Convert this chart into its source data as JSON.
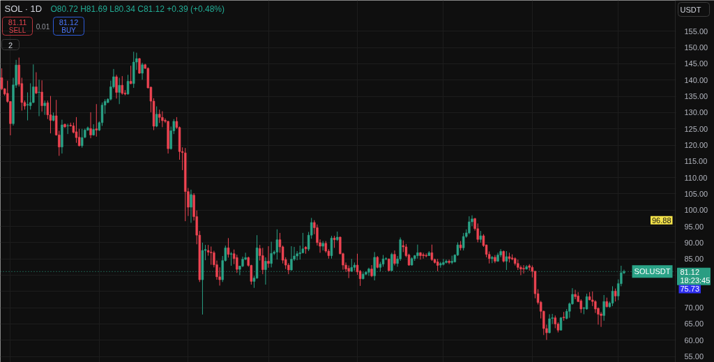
{
  "chart_data": {
    "type": "candlestick",
    "title": "SOL · 1D",
    "categories": [
      null,
      null,
      null,
      null,
      null,
      null,
      null,
      null,
      null,
      null,
      null,
      null,
      null,
      null,
      null,
      null,
      null,
      null,
      null,
      null,
      null,
      null,
      null,
      null,
      null,
      null,
      null,
      null,
      null,
      null,
      null,
      null,
      null,
      null,
      null,
      null,
      null,
      null,
      null,
      null,
      null,
      null,
      null,
      null,
      null,
      null,
      null,
      null,
      null,
      null,
      null,
      null,
      null,
      null,
      null,
      null,
      null,
      null,
      null,
      null,
      null,
      null,
      null,
      null,
      null,
      null,
      null,
      null,
      null,
      null,
      null,
      null,
      null,
      null,
      null,
      null,
      null,
      null,
      null,
      null,
      null,
      null,
      null,
      null,
      null,
      null,
      null,
      null,
      null,
      null,
      null,
      null,
      null,
      null,
      null,
      null,
      null,
      null,
      null,
      null,
      null,
      null,
      null,
      null,
      null,
      null,
      null,
      null,
      null,
      null,
      null,
      null,
      null,
      null,
      null,
      null,
      null,
      null,
      null,
      null,
      null,
      null,
      null,
      null,
      null,
      null,
      null,
      null,
      null,
      null,
      null,
      null,
      null,
      null,
      null,
      null,
      null,
      null,
      null,
      null,
      null,
      null,
      null,
      null,
      null,
      null,
      null,
      null,
      null,
      null,
      null,
      null,
      null,
      null,
      null,
      null,
      null,
      null,
      null,
      null,
      null,
      null,
      null,
      null,
      null,
      null,
      null,
      null,
      null,
      null,
      null,
      null,
      null,
      null,
      null,
      null,
      null,
      null,
      null,
      null,
      null,
      null,
      null,
      null,
      null,
      null,
      null,
      null,
      null,
      null,
      null,
      null,
      null,
      null,
      null,
      null,
      null,
      null,
      null,
      null,
      null,
      null,
      null,
      null,
      null,
      null,
      null,
      null,
      null,
      null,
      null,
      null,
      null,
      null,
      null,
      null,
      null,
      null,
      null,
      null,
      null,
      null,
      null,
      null,
      null,
      null,
      null,
      null,
      null,
      null,
      null,
      null,
      null,
      null,
      null,
      null,
      null,
      null,
      null,
      null,
      null,
      null,
      null,
      null,
      null,
      null,
      null,
      null,
      null
    ],
    "ohlc": [
      [
        140.7,
        143.6,
        136.9,
        137.3
      ],
      [
        137.3,
        137.5,
        135.2,
        135.7
      ],
      [
        135.9,
        139.8,
        133.0,
        133.4
      ],
      [
        133.4,
        133.5,
        123.0,
        126.6
      ],
      [
        126.6,
        140.7,
        126.0,
        138.5
      ],
      [
        138.4,
        146.2,
        137.6,
        144.6
      ],
      [
        144.6,
        146.9,
        138.0,
        138.7
      ],
      [
        138.9,
        140.7,
        130.6,
        133.1
      ],
      [
        133.1,
        133.7,
        130.9,
        132.0
      ],
      [
        132.3,
        136.2,
        127.6,
        132.5
      ],
      [
        132.1,
        139.0,
        130.9,
        133.1
      ],
      [
        133.1,
        144.8,
        132.9,
        137.9
      ],
      [
        137.9,
        142.4,
        135.7,
        136.0
      ],
      [
        136.2,
        140.1,
        128.9,
        136.3
      ],
      [
        136.3,
        139.9,
        130.3,
        132.1
      ],
      [
        132.1,
        133.7,
        129.3,
        132.9
      ],
      [
        133.0,
        133.7,
        128.0,
        129.3
      ],
      [
        129.3,
        135.1,
        123.6,
        127.6
      ],
      [
        127.6,
        130.0,
        127.3,
        129.0
      ],
      [
        129.0,
        133.9,
        122.9,
        123.1
      ],
      [
        123.1,
        124.4,
        116.7,
        119.4
      ],
      [
        119.4,
        127.8,
        117.4,
        126.2
      ],
      [
        126.4,
        126.6,
        125.3,
        125.6
      ],
      [
        125.9,
        126.6,
        123.4,
        126.0
      ],
      [
        126.1,
        126.9,
        125.7,
        125.9
      ],
      [
        125.9,
        126.9,
        123.6,
        123.9
      ],
      [
        124.1,
        128.6,
        120.7,
        122.3
      ],
      [
        122.4,
        125.0,
        119.6,
        119.8
      ],
      [
        119.8,
        125.0,
        119.2,
        122.3
      ],
      [
        122.4,
        125.1,
        122.1,
        124.6
      ],
      [
        124.6,
        125.7,
        124.4,
        125.3
      ],
      [
        125.1,
        130.1,
        122.1,
        123.1
      ],
      [
        123.1,
        126.4,
        122.9,
        124.8
      ],
      [
        125.0,
        132.6,
        122.6,
        124.6
      ],
      [
        124.6,
        127.3,
        124.3,
        126.9
      ],
      [
        126.9,
        133.1,
        125.9,
        132.3
      ],
      [
        132.3,
        134.1,
        129.6,
        133.4
      ],
      [
        133.1,
        134.4,
        132.9,
        134.1
      ],
      [
        134.1,
        139.8,
        133.7,
        137.9
      ],
      [
        137.9,
        143.4,
        137.4,
        141.0
      ],
      [
        141.0,
        141.6,
        134.3,
        136.2
      ],
      [
        136.2,
        140.7,
        132.6,
        138.4
      ],
      [
        138.4,
        141.2,
        135.5,
        135.9
      ],
      [
        136.0,
        136.9,
        135.3,
        135.7
      ],
      [
        135.7,
        141.6,
        135.5,
        139.6
      ],
      [
        139.6,
        144.4,
        138.7,
        138.9
      ],
      [
        138.9,
        148.7,
        137.6,
        145.5
      ],
      [
        145.5,
        148.4,
        143.1,
        146.6
      ],
      [
        146.6,
        146.8,
        141.9,
        142.1
      ],
      [
        142.1,
        145.3,
        140.1,
        144.7
      ],
      [
        144.7,
        145.0,
        143.4,
        143.6
      ],
      [
        143.6,
        143.9,
        137.4,
        137.6
      ],
      [
        137.8,
        138.0,
        130.1,
        133.5
      ],
      [
        133.5,
        134.4,
        124.6,
        125.8
      ],
      [
        125.8,
        131.9,
        125.5,
        129.5
      ],
      [
        129.5,
        130.9,
        126.8,
        128.5
      ],
      [
        128.5,
        130.4,
        125.5,
        127.5
      ],
      [
        127.6,
        128.2,
        126.8,
        127.3
      ],
      [
        127.3,
        127.5,
        117.4,
        118.9
      ],
      [
        118.9,
        125.7,
        118.6,
        124.4
      ],
      [
        124.4,
        128.0,
        123.4,
        127.3
      ],
      [
        127.3,
        128.6,
        125.0,
        125.4
      ],
      [
        125.4,
        125.7,
        115.5,
        118.0
      ],
      [
        118.0,
        119.3,
        112.3,
        117.7
      ],
      [
        117.6,
        119.1,
        96.6,
        105.7
      ],
      [
        105.7,
        106.8,
        98.2,
        100.9
      ],
      [
        100.9,
        106.3,
        96.1,
        104.8
      ],
      [
        104.6,
        105.2,
        96.8,
        98.0
      ],
      [
        98.0,
        99.9,
        89.5,
        92.3
      ],
      [
        92.3,
        93.6,
        77.9,
        78.6
      ],
      [
        78.6,
        90.0,
        67.9,
        87.6
      ],
      [
        87.6,
        89.3,
        84.6,
        87.9
      ],
      [
        87.6,
        89.3,
        86.0,
        87.1
      ],
      [
        87.1,
        88.8,
        83.2,
        86.9
      ],
      [
        86.9,
        87.5,
        82.4,
        83.2
      ],
      [
        83.2,
        84.5,
        78.6,
        79.5
      ],
      [
        79.5,
        82.4,
        76.8,
        78.6
      ],
      [
        78.6,
        85.9,
        77.9,
        84.5
      ],
      [
        84.5,
        89.1,
        84.2,
        88.4
      ],
      [
        88.4,
        91.4,
        85.4,
        86.4
      ],
      [
        86.4,
        87.1,
        82.9,
        86.6
      ],
      [
        86.6,
        87.9,
        83.4,
        85.1
      ],
      [
        85.4,
        86.3,
        80.7,
        81.8
      ],
      [
        81.8,
        82.9,
        80.0,
        82.8
      ],
      [
        82.8,
        85.7,
        82.5,
        84.9
      ],
      [
        84.9,
        86.9,
        84.6,
        85.4
      ],
      [
        85.4,
        85.7,
        82.6,
        83.0
      ],
      [
        83.0,
        83.2,
        77.1,
        78.1
      ],
      [
        78.1,
        79.8,
        76.1,
        79.1
      ],
      [
        79.1,
        92.3,
        78.9,
        88.4
      ],
      [
        88.2,
        89.3,
        84.5,
        86.0
      ],
      [
        86.0,
        88.4,
        80.3,
        81.7
      ],
      [
        81.7,
        85.5,
        77.1,
        84.3
      ],
      [
        84.3,
        88.9,
        82.3,
        83.6
      ],
      [
        83.6,
        90.3,
        82.4,
        86.7
      ],
      [
        86.7,
        87.6,
        86.2,
        87.1
      ],
      [
        87.1,
        94.1,
        84.8,
        90.9
      ],
      [
        90.9,
        93.0,
        86.9,
        88.7
      ],
      [
        88.7,
        89.1,
        83.6,
        84.6
      ],
      [
        84.8,
        85.5,
        81.9,
        83.1
      ],
      [
        83.1,
        83.7,
        80.3,
        81.6
      ],
      [
        81.6,
        88.9,
        81.4,
        84.9
      ],
      [
        84.9,
        88.7,
        84.4,
        85.9
      ],
      [
        85.9,
        87.4,
        84.6,
        86.6
      ],
      [
        86.6,
        89.1,
        84.8,
        86.9
      ],
      [
        86.9,
        93.0,
        86.7,
        88.1
      ],
      [
        88.6,
        88.9,
        86.6,
        88.1
      ],
      [
        88.0,
        93.3,
        87.4,
        92.3
      ],
      [
        92.3,
        97.6,
        91.2,
        96.2
      ],
      [
        96.2,
        96.9,
        92.6,
        94.6
      ],
      [
        94.6,
        95.6,
        89.1,
        90.0
      ],
      [
        90.0,
        91.0,
        86.9,
        88.9
      ],
      [
        88.9,
        90.5,
        87.6,
        89.8
      ],
      [
        89.8,
        90.5,
        86.9,
        87.4
      ],
      [
        87.4,
        88.0,
        85.1,
        86.0
      ],
      [
        86.0,
        92.1,
        85.1,
        91.4
      ],
      [
        91.4,
        92.1,
        88.4,
        90.9
      ],
      [
        90.9,
        93.4,
        90.5,
        91.7
      ],
      [
        91.7,
        91.9,
        86.4,
        86.6
      ],
      [
        86.6,
        86.9,
        81.7,
        83.1
      ],
      [
        83.1,
        83.9,
        81.0,
        81.9
      ],
      [
        82.1,
        83.0,
        79.1,
        81.2
      ],
      [
        81.2,
        85.0,
        81.0,
        82.4
      ],
      [
        82.4,
        83.9,
        81.4,
        83.1
      ],
      [
        83.1,
        86.6,
        80.1,
        81.0
      ],
      [
        81.2,
        81.6,
        76.7,
        78.9
      ],
      [
        78.9,
        80.9,
        78.7,
        80.3
      ],
      [
        80.3,
        81.2,
        80.0,
        80.9
      ],
      [
        80.9,
        82.3,
        79.8,
        81.9
      ],
      [
        81.9,
        83.1,
        79.4,
        79.8
      ],
      [
        79.8,
        87.1,
        78.4,
        85.5
      ],
      [
        85.5,
        85.9,
        82.1,
        82.4
      ],
      [
        82.4,
        84.1,
        81.2,
        83.4
      ],
      [
        83.4,
        86.2,
        82.6,
        85.0
      ],
      [
        85.0,
        85.5,
        84.6,
        85.1
      ],
      [
        85.0,
        85.1,
        81.2,
        81.4
      ],
      [
        81.4,
        86.9,
        81.2,
        86.4
      ],
      [
        86.4,
        87.6,
        83.0,
        83.6
      ],
      [
        83.6,
        85.9,
        82.6,
        85.0
      ],
      [
        85.0,
        91.6,
        84.4,
        90.9
      ],
      [
        89.1,
        90.7,
        87.1,
        88.7
      ],
      [
        88.7,
        89.6,
        85.5,
        86.0
      ],
      [
        86.2,
        86.6,
        82.9,
        83.1
      ],
      [
        83.1,
        85.5,
        83.0,
        85.1
      ],
      [
        85.1,
        86.2,
        84.4,
        86.0
      ],
      [
        86.0,
        89.4,
        85.1,
        86.9
      ],
      [
        86.9,
        87.1,
        84.8,
        86.0
      ],
      [
        86.3,
        86.9,
        85.1,
        86.0
      ],
      [
        86.1,
        86.7,
        85.5,
        85.9
      ],
      [
        86.0,
        87.4,
        85.9,
        86.9
      ],
      [
        86.9,
        89.4,
        84.4,
        84.8
      ],
      [
        84.8,
        85.1,
        83.6,
        83.9
      ],
      [
        84.1,
        85.0,
        81.2,
        83.0
      ],
      [
        83.1,
        84.1,
        82.3,
        83.6
      ],
      [
        83.3,
        85.0,
        83.0,
        83.9
      ],
      [
        83.9,
        84.8,
        83.6,
        84.3
      ],
      [
        84.3,
        84.8,
        83.4,
        83.9
      ],
      [
        83.9,
        86.0,
        83.4,
        84.3
      ],
      [
        84.1,
        86.4,
        83.9,
        86.2
      ],
      [
        86.2,
        90.1,
        85.9,
        89.3
      ],
      [
        89.3,
        90.5,
        87.6,
        88.4
      ],
      [
        88.4,
        93.0,
        87.6,
        91.9
      ],
      [
        91.9,
        94.1,
        91.5,
        93.0
      ],
      [
        93.0,
        98.1,
        92.6,
        96.4
      ],
      [
        96.4,
        98.4,
        95.1,
        97.3
      ],
      [
        97.4,
        97.6,
        93.7,
        94.3
      ],
      [
        94.3,
        95.9,
        90.1,
        91.0
      ],
      [
        91.0,
        93.6,
        90.0,
        92.1
      ],
      [
        92.1,
        92.6,
        88.7,
        89.1
      ],
      [
        89.3,
        89.4,
        85.5,
        86.4
      ],
      [
        86.4,
        87.3,
        83.6,
        85.1
      ],
      [
        85.1,
        85.9,
        83.7,
        85.5
      ],
      [
        85.5,
        86.2,
        83.7,
        84.3
      ],
      [
        84.3,
        86.9,
        84.1,
        86.2
      ],
      [
        86.2,
        88.0,
        85.5,
        87.3
      ],
      [
        87.3,
        87.6,
        83.9,
        84.3
      ],
      [
        84.3,
        87.4,
        81.6,
        85.7
      ],
      [
        85.7,
        86.9,
        83.9,
        85.1
      ],
      [
        85.3,
        86.4,
        84.6,
        85.0
      ],
      [
        85.1,
        85.5,
        83.0,
        83.6
      ],
      [
        83.6,
        84.8,
        81.6,
        82.4
      ],
      [
        82.4,
        83.0,
        80.0,
        81.9
      ],
      [
        82.1,
        83.1,
        80.5,
        81.9
      ],
      [
        81.9,
        83.1,
        81.7,
        82.6
      ],
      [
        82.9,
        83.4,
        81.4,
        82.4
      ],
      [
        82.4,
        83.0,
        79.3,
        81.2
      ],
      [
        81.2,
        81.3,
        72.9,
        74.3
      ],
      [
        74.3,
        75.7,
        71.0,
        71.6
      ],
      [
        71.7,
        72.1,
        66.7,
        68.9
      ],
      [
        68.9,
        69.1,
        61.6,
        63.6
      ],
      [
        63.6,
        64.8,
        60.1,
        62.3
      ],
      [
        62.3,
        68.0,
        62.1,
        66.6
      ],
      [
        66.7,
        68.1,
        65.0,
        66.9
      ],
      [
        66.9,
        67.6,
        63.7,
        65.0
      ],
      [
        65.0,
        65.5,
        62.4,
        63.1
      ],
      [
        63.1,
        67.1,
        63.0,
        66.9
      ],
      [
        67.1,
        68.7,
        66.0,
        66.9
      ],
      [
        66.7,
        69.6,
        66.4,
        68.9
      ],
      [
        68.9,
        71.6,
        66.9,
        71.2
      ],
      [
        71.2,
        76.0,
        70.9,
        74.1
      ],
      [
        74.1,
        75.5,
        72.6,
        73.4
      ],
      [
        73.6,
        74.8,
        71.7,
        71.9
      ],
      [
        72.1,
        72.6,
        68.4,
        69.6
      ],
      [
        69.8,
        70.1,
        68.0,
        70.0
      ],
      [
        69.6,
        74.3,
        69.4,
        73.4
      ],
      [
        73.4,
        74.8,
        72.3,
        72.4
      ],
      [
        72.4,
        75.0,
        70.5,
        71.9
      ],
      [
        71.9,
        72.3,
        68.4,
        69.6
      ],
      [
        69.8,
        70.1,
        64.8,
        68.0
      ],
      [
        68.1,
        68.7,
        64.1,
        67.6
      ],
      [
        67.6,
        73.9,
        66.0,
        71.9
      ],
      [
        71.9,
        73.1,
        70.1,
        70.3
      ],
      [
        70.3,
        71.9,
        70.0,
        71.4
      ],
      [
        71.4,
        76.6,
        70.5,
        75.1
      ],
      [
        75.1,
        75.9,
        71.9,
        73.6
      ],
      [
        73.6,
        78.7,
        72.3,
        77.4
      ],
      [
        77.4,
        82.9,
        76.6,
        80.73
      ],
      [
        80.72,
        81.69,
        80.34,
        81.12
      ],
      null,
      null,
      null,
      null,
      null,
      null,
      null,
      null,
      null,
      null,
      null,
      null,
      null,
      null,
      null,
      null,
      null,
      null,
      null,
      null,
      null,
      null,
      null,
      null,
      null,
      null,
      null,
      null,
      null,
      null,
      null
    ],
    "colors": [
      "#ef4452",
      "#ef4452",
      "#ef4452",
      "#ef4452",
      "#2aa387",
      "#2aa387",
      "#ef4452",
      "#ef4452",
      "#ef4452",
      "#2aa387",
      "#2aa387",
      "#2aa387",
      "#ef4452",
      "#2aa387",
      "#ef4452",
      "#2aa387",
      "#ef4452",
      "#ef4452",
      "#2aa387",
      "#ef4452",
      "#ef4452",
      "#2aa387",
      "#ef4452",
      "#2aa387",
      "#ef4452",
      "#ef4452",
      "#ef4452",
      "#ef4452",
      "#2aa387",
      "#2aa387",
      "#2aa387",
      "#ef4452",
      "#2aa387",
      "#ef4452",
      "#2aa387",
      "#2aa387",
      "#2aa387",
      "#2aa387",
      "#2aa387",
      "#2aa387",
      "#ef4452",
      "#2aa387",
      "#ef4452",
      "#ef4452",
      "#2aa387",
      "#ef4452",
      "#2aa387",
      "#2aa387",
      "#ef4452",
      "#2aa387",
      "#ef4452",
      "#ef4452",
      "#ef4452",
      "#ef4452",
      "#2aa387",
      "#ef4452",
      "#ef4452",
      "#ef4452",
      "#ef4452",
      "#2aa387",
      "#2aa387",
      "#ef4452",
      "#ef4452",
      "#ef4452",
      "#ef4452",
      "#ef4452",
      "#2aa387",
      "#ef4452",
      "#ef4452",
      "#ef4452",
      "#2aa387",
      "#2aa387",
      "#ef4452",
      "#ef4452",
      "#ef4452",
      "#ef4452",
      "#ef4452",
      "#2aa387",
      "#2aa387",
      "#ef4452",
      "#2aa387",
      "#ef4452",
      "#ef4452",
      "#2aa387",
      "#2aa387",
      "#2aa387",
      "#ef4452",
      "#ef4452",
      "#2aa387",
      "#2aa387",
      "#ef4452",
      "#ef4452",
      "#2aa387",
      "#ef4452",
      "#2aa387",
      "#2aa387",
      "#2aa387",
      "#ef4452",
      "#ef4452",
      "#ef4452",
      "#ef4452",
      "#2aa387",
      "#2aa387",
      "#2aa387",
      "#2aa387",
      "#2aa387",
      "#ef4452",
      "#2aa387",
      "#2aa387",
      "#ef4452",
      "#ef4452",
      "#ef4452",
      "#2aa387",
      "#ef4452",
      "#ef4452",
      "#2aa387",
      "#ef4452",
      "#2aa387",
      "#ef4452",
      "#ef4452",
      "#ef4452",
      "#ef4452",
      "#2aa387",
      "#2aa387",
      "#ef4452",
      "#ef4452",
      "#2aa387",
      "#2aa387",
      "#2aa387",
      "#ef4452",
      "#2aa387",
      "#ef4452",
      "#2aa387",
      "#2aa387",
      "#2aa387",
      "#ef4452",
      "#2aa387",
      "#ef4452",
      "#2aa387",
      "#2aa387",
      "#ef4452",
      "#ef4452",
      "#ef4452",
      "#2aa387",
      "#2aa387",
      "#2aa387",
      "#ef4452",
      "#ef4452",
      "#ef4452",
      "#2aa387",
      "#ef4452",
      "#ef4452",
      "#ef4452",
      "#2aa387",
      "#2aa387",
      "#2aa387",
      "#ef4452",
      "#2aa387",
      "#2aa387",
      "#2aa387",
      "#ef4452",
      "#2aa387",
      "#2aa387",
      "#2aa387",
      "#2aa387",
      "#ef4452",
      "#ef4452",
      "#2aa387",
      "#ef4452",
      "#ef4452",
      "#ef4452",
      "#2aa387",
      "#ef4452",
      "#2aa387",
      "#2aa387",
      "#ef4452",
      "#2aa387",
      "#ef4452",
      "#ef4452",
      "#ef4452",
      "#ef4452",
      "#ef4452",
      "#ef4452",
      "#2aa387",
      "#ef4452",
      "#ef4452",
      "#ef4452",
      "#ef4452",
      "#ef4452",
      "#ef4452",
      "#ef4452",
      "#2aa387",
      "#2aa387",
      "#ef4452",
      "#ef4452",
      "#2aa387",
      "#ef4452",
      "#2aa387",
      "#2aa387",
      "#2aa387",
      "#ef4452",
      "#ef4452",
      "#ef4452",
      "#2aa387",
      "#2aa387",
      "#ef4452",
      "#ef4452",
      "#ef4452",
      "#ef4452",
      "#ef4452",
      "#2aa387",
      "#ef4452",
      "#2aa387",
      "#2aa387",
      "#ef4452",
      "#2aa387",
      "#2aa387",
      "#2aa387",
      null,
      null,
      null,
      null,
      null,
      null,
      null,
      null,
      null,
      null,
      null,
      null,
      null,
      null,
      null,
      null,
      null,
      null,
      null,
      null,
      null,
      null,
      null,
      null,
      null,
      null,
      null,
      null,
      null,
      null,
      null
    ],
    "ylim": [
      53.2,
      164.5
    ],
    "yticks": [
      {
        "value": 55,
        "label": "55.00"
      },
      {
        "value": 60,
        "label": "60.00"
      },
      {
        "value": 65,
        "label": "65.00"
      },
      {
        "value": 70,
        "label": "70.00"
      },
      {
        "value": 75,
        "label": null
      },
      {
        "value": 80,
        "label": null
      },
      {
        "value": 85,
        "label": "85.00"
      },
      {
        "value": 90,
        "label": "90.00"
      },
      {
        "value": 95,
        "label": "95.00"
      },
      {
        "value": 100,
        "label": "100.00"
      },
      {
        "value": 105,
        "label": "105.00"
      },
      {
        "value": 110,
        "label": "110.00"
      },
      {
        "value": 115,
        "label": "115.00"
      },
      {
        "value": 120,
        "label": "120.00"
      },
      {
        "value": 125,
        "label": "125.00"
      },
      {
        "value": 130,
        "label": "130.00"
      },
      {
        "value": 135,
        "label": "135.00"
      },
      {
        "value": 140,
        "label": "140.00"
      },
      {
        "value": 145,
        "label": "145.00"
      },
      {
        "value": 150,
        "label": "150.00"
      },
      {
        "value": 155,
        "label": "155.00"
      }
    ],
    "tick_labels": "y",
    "grid": true,
    "ref_lines": [
      {
        "axis": "y",
        "value": 81.12,
        "label": "SOLUSDT",
        "color": "#2aa387",
        "line_style": "dotted"
      }
    ],
    "annotations": [
      "O80.72 H81.69 L80.34 C81.12 +0.39 (+0.48%)",
      "81.11",
      "SELL",
      "0.01",
      "81.12",
      "BUY",
      "2",
      "USDT",
      {
        "text": "96.88",
        "y": 96.88
      },
      {
        "text": "81.12",
        "y": 81.12
      },
      {
        "text": "18:23:45",
        "y": 81.12
      },
      {
        "text": "75.73",
        "y": 75.73
      }
    ]
  }
}
